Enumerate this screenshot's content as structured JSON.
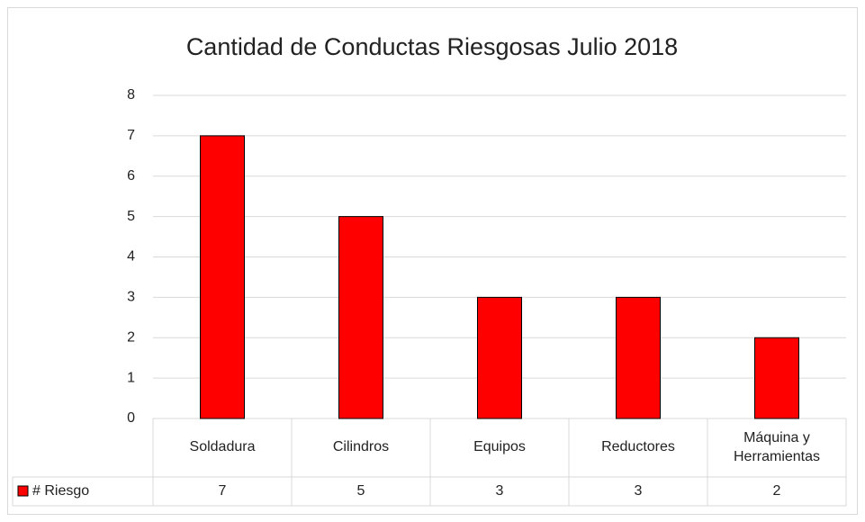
{
  "chart_data": {
    "type": "bar",
    "title": "Cantidad de Conductas Riesgosas Julio 2018",
    "categories": [
      "Soldadura",
      "Cilindros",
      "Equipos",
      "Reductores",
      "Máquina y Herramientas"
    ],
    "series": [
      {
        "name": "# Riesgo",
        "color": "#ff0000",
        "values": [
          7,
          5,
          3,
          3,
          2
        ]
      }
    ],
    "ylim": [
      0,
      8
    ],
    "yticks": [
      0,
      1,
      2,
      3,
      4,
      5,
      6,
      7,
      8
    ],
    "grid": true,
    "data_table": true
  }
}
